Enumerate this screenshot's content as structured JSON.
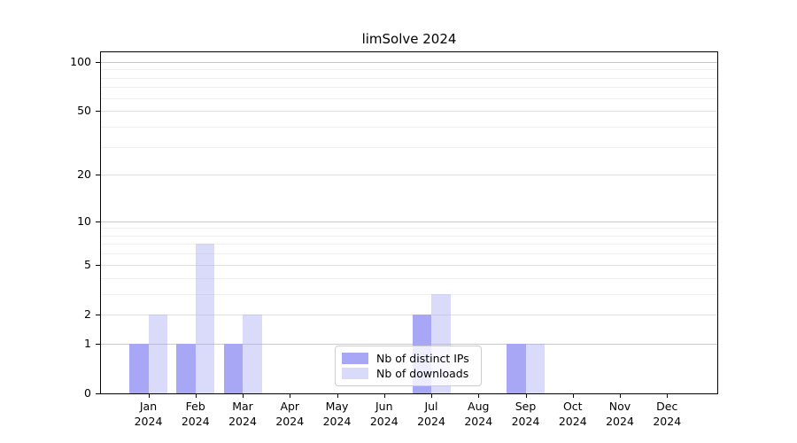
{
  "chart_data": {
    "type": "bar",
    "title": "limSolve 2024",
    "categories": [
      "Jan",
      "Feb",
      "Mar",
      "Apr",
      "May",
      "Jun",
      "Jul",
      "Aug",
      "Sep",
      "Oct",
      "Nov",
      "Dec"
    ],
    "year_label": "2024",
    "series": [
      {
        "name": "Nb of distinct IPs",
        "color": "rgba(167,167,245,1)",
        "values": [
          1,
          1,
          1,
          0,
          0,
          0,
          2,
          0,
          1,
          0,
          0,
          0
        ]
      },
      {
        "name": "Nb of downloads",
        "color": "rgba(167,167,245,0.42)",
        "values": [
          2,
          7,
          2,
          0,
          0,
          0,
          3,
          0,
          1,
          0,
          0,
          0
        ]
      }
    ],
    "yscale": "log1p",
    "ylim": [
      0,
      116
    ],
    "yticks": [
      0,
      1,
      2,
      5,
      10,
      20,
      50,
      100
    ],
    "minor_yticks": [
      3,
      4,
      6,
      7,
      8,
      9,
      30,
      40,
      60,
      70,
      80,
      90
    ],
    "major_gridline_values": [
      1,
      10,
      100
    ],
    "grid": true,
    "legend_position": "lower center",
    "xlabel": "",
    "ylabel": "",
    "colors": {
      "axis": "#000000",
      "text": "#000000",
      "grid_major": "#c9c9c9",
      "grid_mid": "#e1e1e1",
      "grid_minor": "#efefef",
      "legend_border": "#cccccc",
      "background": "#ffffff"
    }
  }
}
